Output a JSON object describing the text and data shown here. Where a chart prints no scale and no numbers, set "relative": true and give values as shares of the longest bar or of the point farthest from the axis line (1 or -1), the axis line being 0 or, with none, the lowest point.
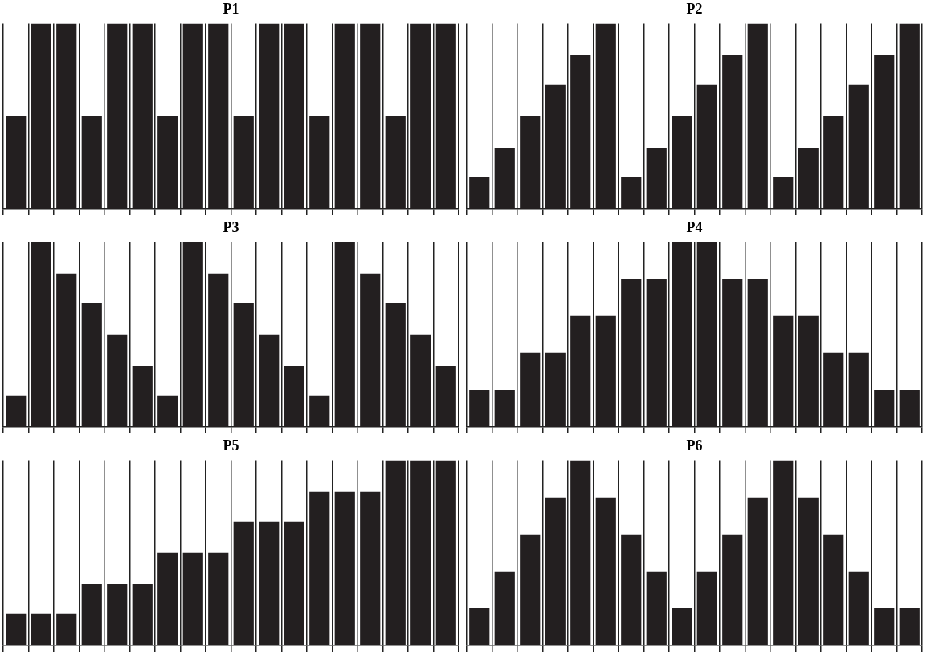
{
  "chart_data": [
    {
      "type": "bar",
      "title": "P1",
      "relative": true,
      "grid": "x",
      "tick_labels": false,
      "color": "#231f20",
      "categories": [
        null,
        null,
        null,
        null,
        null,
        null,
        null,
        null,
        null,
        null,
        null,
        null,
        null,
        null,
        null,
        null,
        null,
        null
      ],
      "values": [
        0.5,
        1,
        1,
        0.5,
        1,
        1,
        0.5,
        1,
        1,
        0.5,
        1,
        1,
        0.5,
        1,
        1,
        0.5,
        1,
        1
      ]
    },
    {
      "type": "bar",
      "title": "P2",
      "relative": true,
      "grid": "x",
      "tick_labels": false,
      "color": "#231f20",
      "categories": [
        null,
        null,
        null,
        null,
        null,
        null,
        null,
        null,
        null,
        null,
        null,
        null,
        null,
        null,
        null,
        null,
        null,
        null
      ],
      "values": [
        0.17,
        0.33,
        0.5,
        0.67,
        0.83,
        1,
        0.17,
        0.33,
        0.5,
        0.67,
        0.83,
        1,
        0.17,
        0.33,
        0.5,
        0.67,
        0.83,
        1
      ]
    },
    {
      "type": "bar",
      "title": "P3",
      "relative": true,
      "grid": "x",
      "tick_labels": false,
      "color": "#231f20",
      "categories": [
        null,
        null,
        null,
        null,
        null,
        null,
        null,
        null,
        null,
        null,
        null,
        null,
        null,
        null,
        null,
        null,
        null,
        null
      ],
      "values": [
        0.17,
        1,
        0.83,
        0.67,
        0.5,
        0.33,
        0.17,
        1,
        0.83,
        0.67,
        0.5,
        0.33,
        0.17,
        1,
        0.83,
        0.67,
        0.5,
        0.33
      ]
    },
    {
      "type": "bar",
      "title": "P4",
      "relative": true,
      "grid": "x",
      "tick_labels": false,
      "color": "#231f20",
      "categories": [
        null,
        null,
        null,
        null,
        null,
        null,
        null,
        null,
        null,
        null,
        null,
        null,
        null,
        null,
        null,
        null,
        null,
        null
      ],
      "values": [
        0.2,
        0.2,
        0.4,
        0.4,
        0.6,
        0.6,
        0.8,
        0.8,
        1,
        1,
        0.8,
        0.8,
        0.6,
        0.6,
        0.4,
        0.4,
        0.2,
        0.2
      ]
    },
    {
      "type": "bar",
      "title": "P5",
      "relative": true,
      "grid": "x",
      "tick_labels": false,
      "color": "#231f20",
      "categories": [
        null,
        null,
        null,
        null,
        null,
        null,
        null,
        null,
        null,
        null,
        null,
        null,
        null,
        null,
        null,
        null,
        null,
        null
      ],
      "values": [
        0.17,
        0.17,
        0.17,
        0.33,
        0.33,
        0.33,
        0.5,
        0.5,
        0.5,
        0.67,
        0.67,
        0.67,
        0.83,
        0.83,
        0.83,
        1,
        1,
        1
      ]
    },
    {
      "type": "bar",
      "title": "P6",
      "relative": true,
      "grid": "x",
      "tick_labels": false,
      "color": "#231f20",
      "categories": [
        null,
        null,
        null,
        null,
        null,
        null,
        null,
        null,
        null,
        null,
        null,
        null,
        null,
        null,
        null,
        null,
        null,
        null
      ],
      "values": [
        0.2,
        0.4,
        0.6,
        0.8,
        1,
        0.8,
        0.6,
        0.4,
        0.2,
        0.4,
        0.6,
        0.8,
        1,
        0.8,
        0.6,
        0.4,
        0.2,
        0.2
      ]
    }
  ]
}
